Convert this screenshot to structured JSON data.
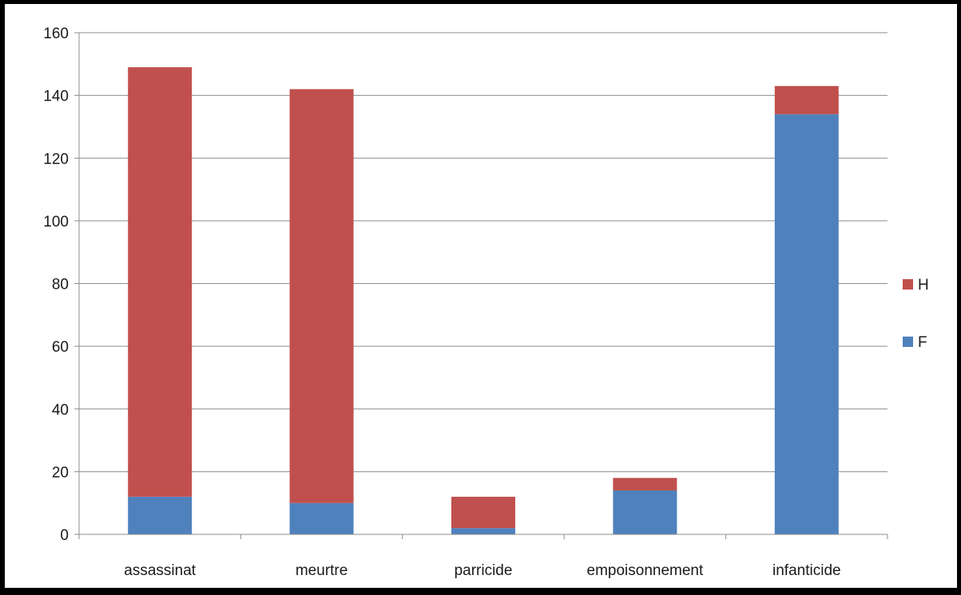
{
  "chart_data": {
    "type": "bar",
    "stacked": true,
    "title": "",
    "xlabel": "",
    "ylabel": "",
    "categories": [
      "assassinat",
      "meurtre",
      "parricide",
      "empoisonnement",
      "infanticide"
    ],
    "series": [
      {
        "name": "F",
        "color": "#4F81BD",
        "values": [
          12,
          10,
          2,
          14,
          134
        ]
      },
      {
        "name": "H",
        "color": "#C0504D",
        "values": [
          137,
          132,
          10,
          4,
          9
        ]
      }
    ],
    "ylim": [
      0,
      160
    ],
    "yticks": [
      0,
      20,
      40,
      60,
      80,
      100,
      120,
      140,
      160
    ],
    "grid": true,
    "legend": {
      "placement": "right",
      "entries": [
        {
          "label": "H",
          "color": "#C0504D"
        },
        {
          "label": "F",
          "color": "#4F81BD"
        }
      ]
    }
  }
}
